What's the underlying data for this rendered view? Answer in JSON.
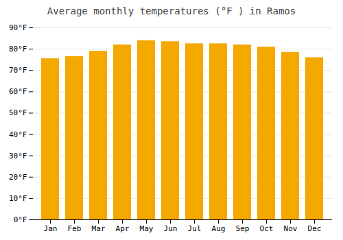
{
  "chart_data": {
    "type": "bar",
    "title": "Average monthly temperatures (°F ) in Ramos",
    "categories": [
      "Jan",
      "Feb",
      "Mar",
      "Apr",
      "May",
      "Jun",
      "Jul",
      "Aug",
      "Sep",
      "Oct",
      "Nov",
      "Dec"
    ],
    "values": [
      75.5,
      76.5,
      79.0,
      82.0,
      84.0,
      83.5,
      82.5,
      82.5,
      82.0,
      81.0,
      78.5,
      76.0
    ],
    "color": "#F5A800",
    "ylim": [
      0,
      90
    ],
    "yticks": [
      {
        "value": 0,
        "label": "0°F"
      },
      {
        "value": 10,
        "label": "10°F"
      },
      {
        "value": 20,
        "label": "20°F"
      },
      {
        "value": 30,
        "label": "30°F"
      },
      {
        "value": 40,
        "label": "40°F"
      },
      {
        "value": 50,
        "label": "50°F"
      },
      {
        "value": 60,
        "label": "60°F"
      },
      {
        "value": 70,
        "label": "70°F"
      },
      {
        "value": 80,
        "label": "80°F"
      },
      {
        "value": 90,
        "label": "90°F"
      }
    ],
    "grid": true
  }
}
